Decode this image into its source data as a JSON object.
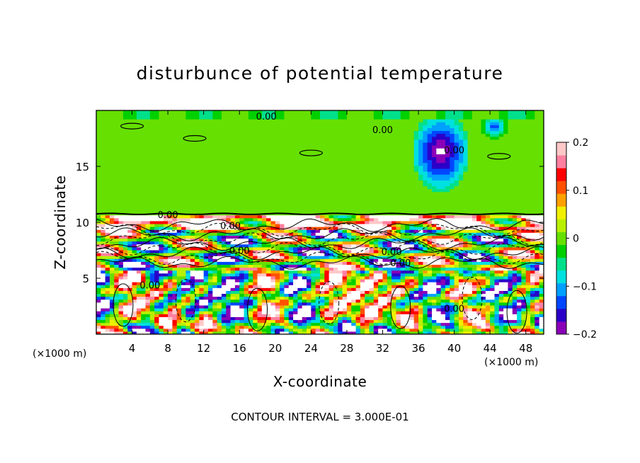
{
  "chart_data": {
    "type": "heatmap",
    "title": "disturbunce of potential temperature",
    "xlabel": "X-coordinate",
    "ylabel": "Z-coordinate",
    "x_unit": "(×1000 m)",
    "y_unit": "(×1000 m)",
    "xlim": [
      0,
      50
    ],
    "ylim": [
      0,
      20
    ],
    "x_ticks": [
      4,
      8,
      12,
      16,
      20,
      24,
      28,
      32,
      36,
      40,
      44,
      48
    ],
    "y_ticks": [
      5,
      10,
      15
    ],
    "colorbar": {
      "range": [
        -0.2,
        0.2
      ],
      "tick_values": [
        0.2,
        0.1,
        0,
        -0.1,
        -0.2
      ],
      "tick_labels": [
        "0.2",
        "0.1",
        "0",
        "−0.1",
        "−0.2"
      ],
      "colors": [
        "#8a00b8",
        "#2a00c8",
        "#0046ff",
        "#00a0ff",
        "#00e0e0",
        "#00e08a",
        "#00d000",
        "#66e000",
        "#b8f000",
        "#f0f000",
        "#ffa000",
        "#ff5000",
        "#ff0000",
        "#ff80a0",
        "#ffc8c8"
      ]
    },
    "contour_labels": [
      "0.00",
      "0.00",
      "0.00",
      "0.00",
      "0.00",
      "0.00",
      "0.00",
      "0.00",
      "0.00",
      "0.00"
    ],
    "footer": "CONTOUR INTERVAL = 3.000E-01"
  }
}
